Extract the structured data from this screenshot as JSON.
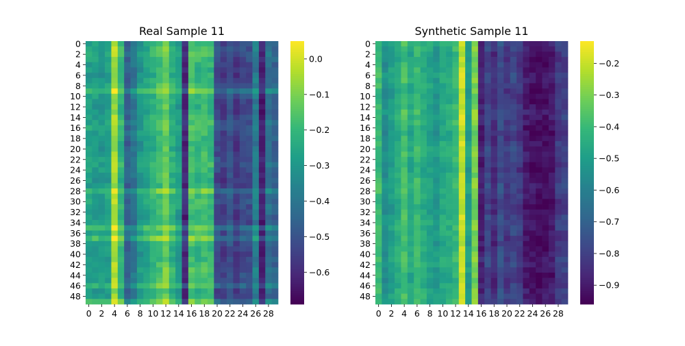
{
  "chart_data": [
    {
      "type": "heatmap",
      "title": "Real Sample 11",
      "xlabel": "",
      "ylabel": "",
      "rows": 50,
      "cols": 30,
      "x_tick_labels": [
        "0",
        "2",
        "4",
        "6",
        "8",
        "10",
        "12",
        "14",
        "16",
        "18",
        "20",
        "22",
        "24",
        "26",
        "28"
      ],
      "y_tick_labels": [
        "0",
        "2",
        "4",
        "6",
        "8",
        "10",
        "12",
        "14",
        "16",
        "18",
        "20",
        "22",
        "24",
        "26",
        "28",
        "30",
        "32",
        "34",
        "36",
        "38",
        "40",
        "42",
        "44",
        "46",
        "48"
      ],
      "colorbar": {
        "min": -0.69,
        "max": 0.05,
        "ticks": [
          "0.0",
          "−0.1",
          "−0.2",
          "−0.3",
          "−0.4",
          "−0.5",
          "−0.6"
        ],
        "tick_values": [
          0.0,
          -0.1,
          -0.2,
          -0.3,
          -0.4,
          -0.5,
          -0.6
        ]
      },
      "colormap": "viridis",
      "column_means": [
        -0.27,
        -0.28,
        -0.29,
        -0.27,
        -0.05,
        -0.21,
        -0.46,
        -0.4,
        -0.3,
        -0.26,
        -0.22,
        -0.18,
        -0.12,
        -0.22,
        -0.28,
        -0.6,
        -0.17,
        -0.2,
        -0.18,
        -0.2,
        -0.52,
        -0.55,
        -0.5,
        -0.56,
        -0.52,
        -0.52,
        -0.38,
        -0.62,
        -0.42,
        -0.46
      ],
      "bright_rows": [
        9,
        28,
        35,
        37,
        46,
        49
      ],
      "row_boost": 0.08
    },
    {
      "type": "heatmap",
      "title": "Synthetic Sample 11",
      "xlabel": "",
      "ylabel": "",
      "rows": 50,
      "cols": 30,
      "x_tick_labels": [
        "0",
        "2",
        "4",
        "6",
        "8",
        "10",
        "12",
        "14",
        "16",
        "18",
        "20",
        "22",
        "24",
        "26",
        "28"
      ],
      "y_tick_labels": [
        "0",
        "2",
        "4",
        "6",
        "8",
        "10",
        "12",
        "14",
        "16",
        "18",
        "20",
        "22",
        "24",
        "26",
        "28",
        "30",
        "32",
        "34",
        "36",
        "38",
        "40",
        "42",
        "44",
        "46",
        "48"
      ],
      "colorbar": {
        "min": -0.96,
        "max": -0.13,
        "ticks": [
          "−0.2",
          "−0.3",
          "−0.4",
          "−0.5",
          "−0.6",
          "−0.7",
          "−0.8",
          "−0.9"
        ],
        "tick_values": [
          -0.2,
          -0.3,
          -0.4,
          -0.5,
          -0.6,
          -0.7,
          -0.8,
          -0.9
        ]
      },
      "colormap": "viridis",
      "column_means": [
        -0.4,
        -0.55,
        -0.5,
        -0.44,
        -0.38,
        -0.46,
        -0.4,
        -0.45,
        -0.48,
        -0.52,
        -0.46,
        -0.45,
        -0.4,
        -0.2,
        -0.5,
        -0.3,
        -0.88,
        -0.78,
        -0.85,
        -0.76,
        -0.82,
        -0.78,
        -0.82,
        -0.9,
        -0.92,
        -0.93,
        -0.93,
        -0.9,
        -0.82,
        -0.8
      ],
      "bright_rows": [],
      "row_boost": 0.0
    }
  ]
}
